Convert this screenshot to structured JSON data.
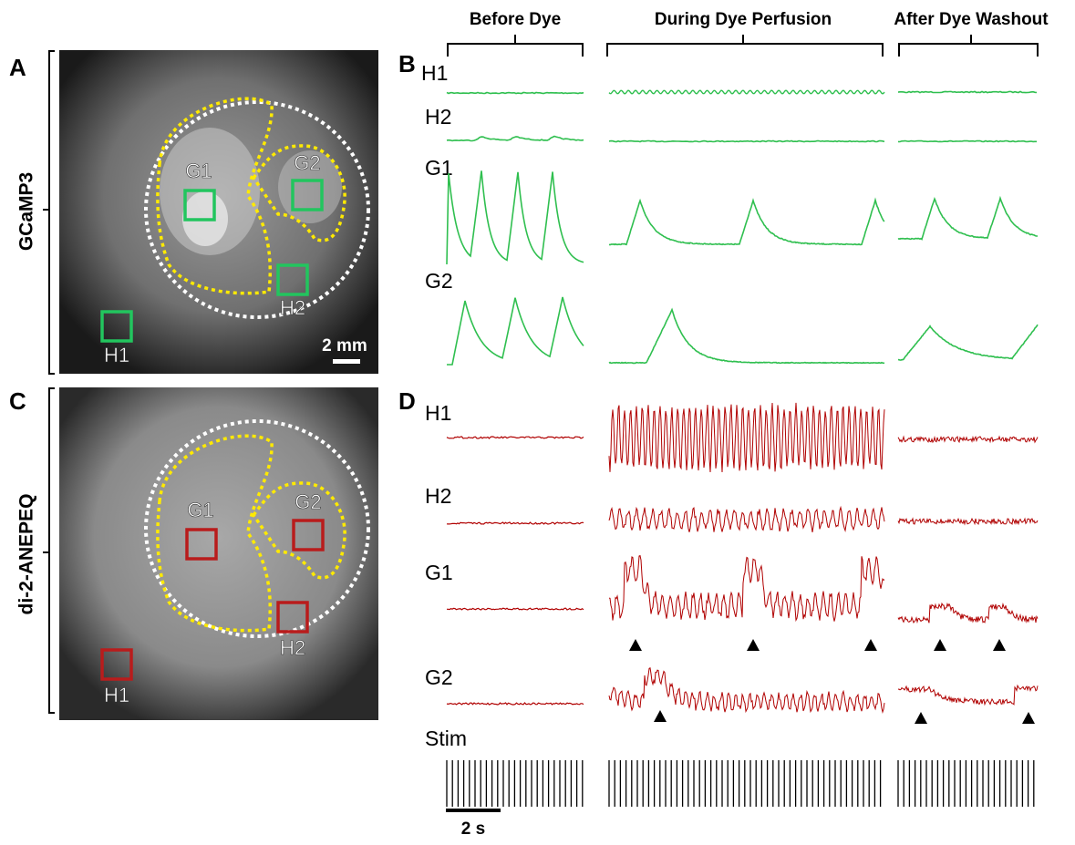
{
  "columns": [
    "Before Dye",
    "During Dye Perfusion",
    "After Dye Washout"
  ],
  "panels": {
    "A": {
      "letter": "A",
      "label": "GCaMP3",
      "rois": [
        "G1",
        "G2",
        "H2",
        "H1"
      ],
      "scale": "2 mm"
    },
    "B": {
      "letter": "B",
      "traces": [
        "H1",
        "H2",
        "G1",
        "G2"
      ]
    },
    "C": {
      "letter": "C",
      "label": "di-2-ANEPEQ",
      "rois": [
        "G1",
        "G2",
        "H2",
        "H1"
      ]
    },
    "D": {
      "letter": "D",
      "traces": [
        "H1",
        "H2",
        "G1",
        "G2",
        "Stim"
      ],
      "scale": "2 s"
    }
  }
}
